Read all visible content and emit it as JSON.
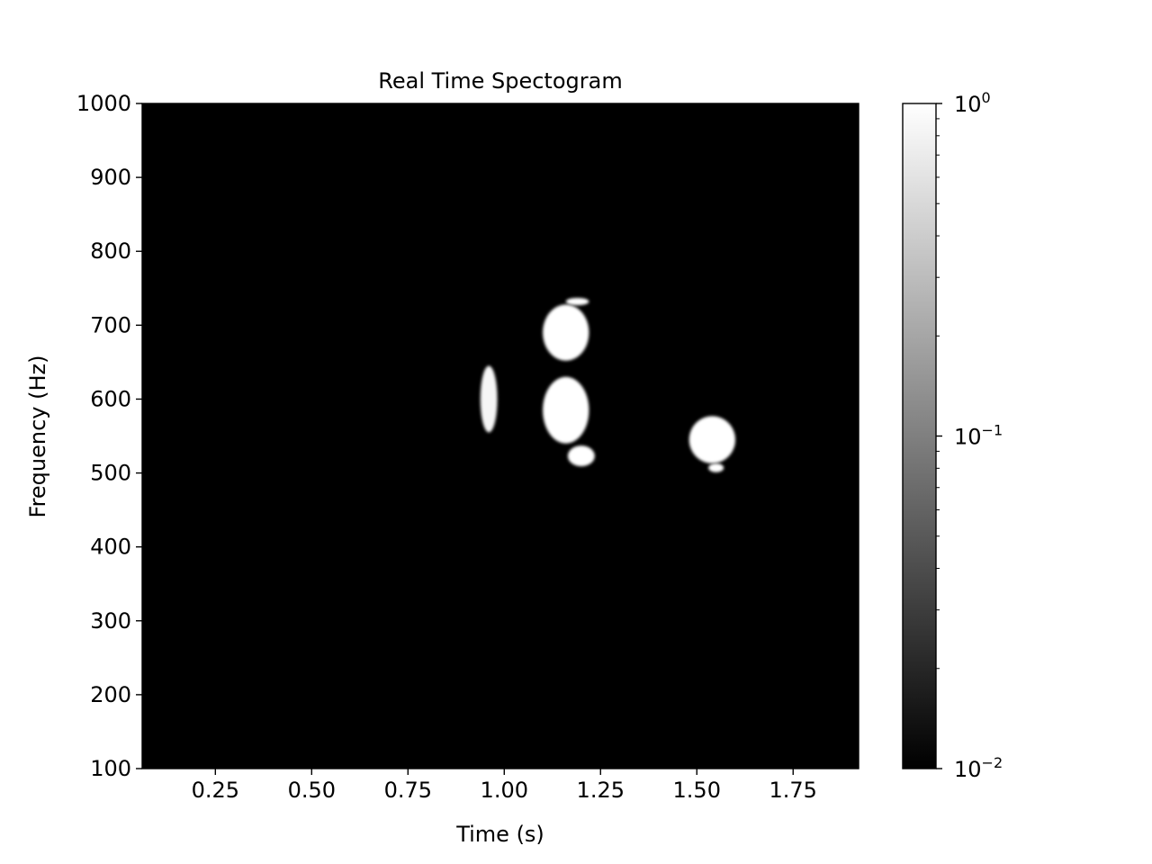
{
  "chart_data": {
    "type": "heatmap",
    "title": "Real Time Spectogram",
    "xlabel": "Time (s)",
    "ylabel": "Frequency (Hz)",
    "xlim": [
      0.06,
      1.92
    ],
    "ylim": [
      100,
      1000
    ],
    "x_ticks": [
      0.25,
      0.5,
      0.75,
      1.0,
      1.25,
      1.5,
      1.75
    ],
    "x_tick_labels": [
      "0.25",
      "0.50",
      "0.75",
      "1.00",
      "1.25",
      "1.50",
      "1.75"
    ],
    "y_ticks": [
      100,
      200,
      300,
      400,
      500,
      600,
      700,
      800,
      900,
      1000
    ],
    "y_tick_labels": [
      "100",
      "200",
      "300",
      "400",
      "500",
      "600",
      "700",
      "800",
      "900",
      "1000"
    ],
    "grid": false,
    "background_value": 0.01,
    "colormap": "gray",
    "colorbar": {
      "scale": "log",
      "range": [
        0.01,
        1
      ],
      "ticks": [
        {
          "value": 1,
          "base": "10",
          "exponent": "0"
        },
        {
          "value": 0.1,
          "base": "10",
          "exponent": "−1"
        },
        {
          "value": 0.01,
          "base": "10",
          "exponent": "−2"
        }
      ]
    },
    "blobs": [
      {
        "time": 0.96,
        "frequency": 600,
        "time_halfwidth": 0.022,
        "frequency_halfwidth": 45,
        "intensity": 0.85
      },
      {
        "time": 1.16,
        "frequency": 690,
        "time_halfwidth": 0.06,
        "frequency_halfwidth": 38,
        "intensity": 1.0
      },
      {
        "time": 1.19,
        "frequency": 732,
        "time_halfwidth": 0.03,
        "frequency_halfwidth": 5,
        "intensity": 1.0
      },
      {
        "time": 1.16,
        "frequency": 585,
        "time_halfwidth": 0.06,
        "frequency_halfwidth": 45,
        "intensity": 1.0
      },
      {
        "time": 1.2,
        "frequency": 523,
        "time_halfwidth": 0.035,
        "frequency_halfwidth": 14,
        "intensity": 1.0
      },
      {
        "time": 1.54,
        "frequency": 545,
        "time_halfwidth": 0.06,
        "frequency_halfwidth": 32,
        "intensity": 1.0
      },
      {
        "time": 1.55,
        "frequency": 507,
        "time_halfwidth": 0.02,
        "frequency_halfwidth": 6,
        "intensity": 1.0
      }
    ]
  }
}
